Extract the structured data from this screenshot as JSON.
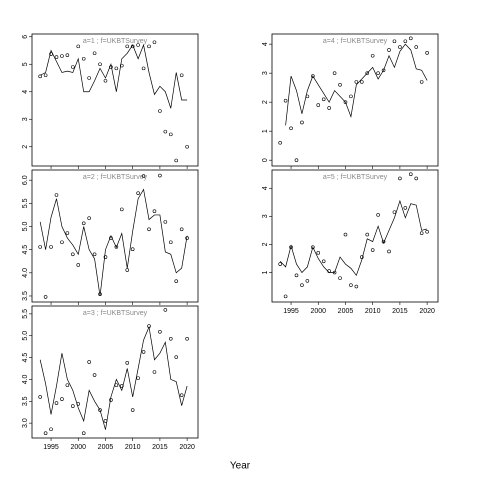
{
  "xlabel": "Year",
  "chart_data": [
    {
      "type": "scatter",
      "title": "a=1 ; f=UKBTSurvey",
      "x": [
        1993,
        1994,
        1995,
        1996,
        1997,
        1998,
        1999,
        2000,
        2001,
        2002,
        2003,
        2004,
        2005,
        2006,
        2007,
        2008,
        2009,
        2010,
        2011,
        2012,
        2013,
        2014,
        2015,
        2016,
        2017,
        2018,
        2019,
        2020
      ],
      "xlim": [
        1991.5,
        2022
      ],
      "xticks": [
        1995,
        2000,
        2005,
        2010,
        2015,
        2020
      ],
      "show_xtick_labels": false,
      "ylim": [
        1.3,
        6.1
      ],
      "yticks": [
        2,
        3,
        4,
        5,
        6
      ],
      "series": [
        {
          "style": "points",
          "color": "#000000",
          "values": [
            4.56,
            4.6,
            5.37,
            5.26,
            5.3,
            5.33,
            4.9,
            5.65,
            5.2,
            4.5,
            5.4,
            5.0,
            4.4,
            4.9,
            4.85,
            4.95,
            5.65,
            5.65,
            5.7,
            4.85,
            5.65,
            5.8,
            3.3,
            2.55,
            2.45,
            1.5,
            4.6,
            2.0
          ]
        },
        {
          "style": "line",
          "color": "#000000",
          "values": [
            4.6,
            4.7,
            5.5,
            5.1,
            4.7,
            4.75,
            4.7,
            5.2,
            4.0,
            4.0,
            4.4,
            4.85,
            4.5,
            5.0,
            4.0,
            5.2,
            5.4,
            5.7,
            5.2,
            5.7,
            4.7,
            3.9,
            4.2,
            4.0,
            3.4,
            4.7,
            3.7,
            3.7
          ]
        }
      ]
    },
    {
      "type": "scatter",
      "title": "a=2 ; f=UKBTSurvey",
      "x": [
        1993,
        1994,
        1995,
        1996,
        1997,
        1998,
        1999,
        2000,
        2001,
        2002,
        2003,
        2004,
        2005,
        2006,
        2007,
        2008,
        2009,
        2010,
        2011,
        2012,
        2013,
        2014,
        2015,
        2016,
        2017,
        2018,
        2019,
        2020
      ],
      "xlim": [
        1991.5,
        2022
      ],
      "xticks": [
        1995,
        2000,
        2005,
        2010,
        2015,
        2020
      ],
      "show_xtick_labels": false,
      "ylim": [
        3.37,
        6.22
      ],
      "yticks": [
        3.5,
        {
          "value": 4,
          "label": "4.0"
        },
        4.5,
        {
          "value": 5,
          "label": "5.0"
        },
        5.5,
        {
          "value": 6,
          "label": "6.0"
        }
      ],
      "series": [
        {
          "style": "points",
          "color": "#000000",
          "values": [
            4.56,
            3.48,
            4.56,
            5.68,
            4.66,
            4.86,
            4.4,
            4.17,
            5.07,
            5.18,
            4.4,
            3.54,
            4.34,
            4.75,
            4.56,
            5.37,
            4.06,
            4.51,
            5.72,
            6.09,
            4.94,
            5.33,
            6.1,
            5.1,
            4.66,
            3.82,
            4.94,
            4.75
          ]
        },
        {
          "style": "line",
          "color": "#000000",
          "values": [
            5.1,
            4.5,
            5.2,
            5.6,
            5.0,
            4.75,
            4.6,
            4.4,
            5.0,
            4.5,
            4.3,
            3.5,
            4.5,
            4.8,
            4.55,
            4.85,
            4.1,
            4.9,
            5.6,
            5.8,
            5.15,
            5.25,
            5.25,
            4.45,
            4.4,
            4.0,
            4.1,
            4.8
          ]
        }
      ]
    },
    {
      "type": "scatter",
      "title": "a=3 ; f=UKBTSurvey",
      "x": [
        1993,
        1994,
        1995,
        1996,
        1997,
        1998,
        1999,
        2000,
        2001,
        2002,
        2003,
        2004,
        2005,
        2006,
        2007,
        2008,
        2009,
        2010,
        2011,
        2012,
        2013,
        2014,
        2015,
        2016,
        2017,
        2018,
        2019,
        2020
      ],
      "xlim": [
        1991.5,
        2022
      ],
      "xticks": [
        1995,
        2000,
        2005,
        2010,
        2015,
        2020
      ],
      "show_xtick_labels": true,
      "ylim": [
        2.66,
        5.68
      ],
      "yticks": [
        {
          "value": 3,
          "label": "3.0"
        },
        3.5,
        {
          "value": 4,
          "label": "4.0"
        },
        4.5,
        {
          "value": 5,
          "label": "5.0"
        },
        5.5
      ],
      "series": [
        {
          "style": "points",
          "color": "#000000",
          "values": [
            3.6,
            2.77,
            2.86,
            3.46,
            3.55,
            3.87,
            3.39,
            3.44,
            2.77,
            4.4,
            4.1,
            3.3,
            3.05,
            3.53,
            3.87,
            3.85,
            4.38,
            3.3,
            4.03,
            4.63,
            5.22,
            4.17,
            5.09,
            5.59,
            4.93,
            4.51,
            3.64,
            4.93
          ]
        },
        {
          "style": "line",
          "color": "#000000",
          "values": [
            4.45,
            3.9,
            3.2,
            3.85,
            4.6,
            4.0,
            3.75,
            3.35,
            3.05,
            3.75,
            3.5,
            3.3,
            2.85,
            3.6,
            4.0,
            3.75,
            4.25,
            3.6,
            4.25,
            4.9,
            5.2,
            4.45,
            4.6,
            4.85,
            4.0,
            3.95,
            3.4,
            3.85
          ]
        }
      ]
    },
    {
      "type": "scatter",
      "title": "a=4 ; f=UKBTSurvey",
      "x": [
        1993,
        1994,
        1995,
        1996,
        1997,
        1998,
        1999,
        2000,
        2001,
        2002,
        2003,
        2004,
        2005,
        2006,
        2007,
        2008,
        2009,
        2010,
        2011,
        2012,
        2013,
        2014,
        2015,
        2016,
        2017,
        2018,
        2019,
        2020
      ],
      "xlim": [
        1991.5,
        2022
      ],
      "xticks": [
        1995,
        2000,
        2005,
        2010,
        2015,
        2020
      ],
      "show_xtick_labels": false,
      "ylim": [
        -0.2,
        4.35
      ],
      "yticks": [
        0,
        1,
        2,
        3,
        4
      ],
      "series": [
        {
          "style": "points",
          "color": "#000000",
          "values": [
            0.6,
            2.05,
            1.1,
            0.0,
            1.3,
            2.2,
            2.9,
            1.9,
            2.1,
            1.8,
            3.0,
            2.6,
            2.0,
            2.2,
            2.7,
            2.7,
            3.0,
            3.6,
            3.0,
            3.1,
            3.8,
            4.1,
            3.9,
            4.1,
            4.2,
            3.9,
            2.7,
            3.7
          ]
        },
        {
          "style": "line",
          "color": "#000000",
          "values": [
            null,
            1.2,
            2.9,
            2.4,
            1.6,
            2.4,
            2.9,
            2.6,
            2.3,
            2.0,
            2.4,
            2.2,
            2.0,
            1.5,
            2.6,
            2.8,
            3.0,
            3.2,
            2.8,
            3.1,
            3.6,
            3.2,
            3.75,
            4.0,
            3.8,
            3.15,
            3.1,
            2.75
          ]
        }
      ]
    },
    {
      "type": "scatter",
      "title": "a=5 ; f=UKBTSurvey",
      "x": [
        1993,
        1994,
        1995,
        1996,
        1997,
        1998,
        1999,
        2000,
        2001,
        2002,
        2003,
        2004,
        2005,
        2006,
        2007,
        2008,
        2009,
        2010,
        2011,
        2012,
        2013,
        2014,
        2015,
        2016,
        2017,
        2018,
        2019,
        2020
      ],
      "xlim": [
        1991.5,
        2022
      ],
      "xticks": [
        1995,
        2000,
        2005,
        2010,
        2015,
        2020
      ],
      "show_xtick_labels": true,
      "ylim": [
        -0.05,
        4.65
      ],
      "yticks": [
        1,
        2,
        3,
        4
      ],
      "series": [
        {
          "style": "points",
          "color": "#000000",
          "values": [
            1.3,
            0.15,
            1.9,
            0.9,
            0.55,
            0.7,
            1.9,
            1.7,
            1.4,
            1.05,
            1.0,
            0.8,
            2.35,
            0.55,
            0.5,
            1.55,
            2.35,
            1.8,
            3.05,
            2.1,
            1.75,
            3.15,
            4.35,
            3.3,
            4.5,
            4.35,
            2.4,
            2.45
          ]
        },
        {
          "style": "line",
          "color": "#000000",
          "values": [
            1.4,
            1.2,
            1.95,
            1.3,
            1.0,
            1.2,
            1.9,
            1.5,
            1.2,
            1.0,
            1.0,
            1.55,
            1.3,
            1.15,
            0.9,
            1.45,
            2.2,
            2.1,
            2.65,
            2.05,
            2.5,
            2.95,
            3.55,
            2.95,
            3.45,
            3.4,
            2.5,
            2.55
          ]
        }
      ]
    }
  ]
}
